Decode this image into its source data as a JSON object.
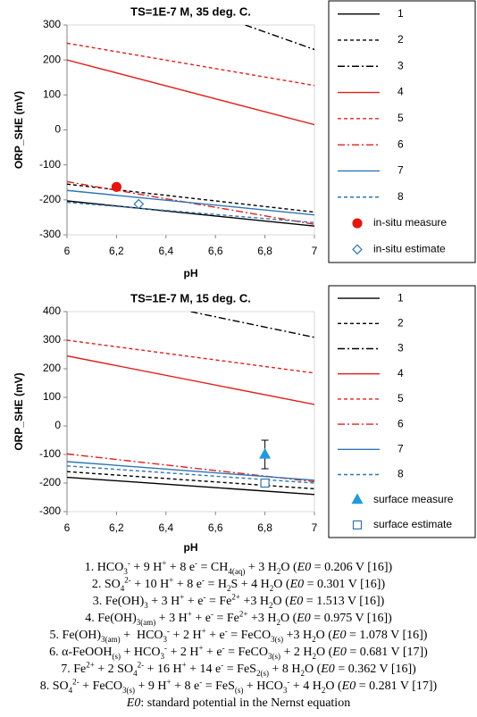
{
  "chart_data": [
    {
      "type": "line",
      "title": "TS=1E-7 M, 35 deg. C.",
      "xlabel": "pH",
      "ylabel": "ORP_SHE (mV)",
      "xlim": [
        6,
        7
      ],
      "xticks": [
        6,
        {
          "value": 6.2,
          "label": "6,2"
        },
        {
          "value": 6.4,
          "label": "6,4"
        },
        {
          "value": 6.6,
          "label": "6,6"
        },
        {
          "value": 6.8,
          "label": "6,8"
        },
        7
      ],
      "ylim": [
        -300,
        300
      ],
      "yticks": [
        -300,
        -200,
        -100,
        0,
        100,
        200,
        300
      ],
      "grid": false,
      "legend": "right",
      "series": [
        {
          "name": "1",
          "color": "#000000",
          "linestyle": "solid",
          "x": [
            6,
            7
          ],
          "values": [
            -203,
            -275
          ]
        },
        {
          "name": "2",
          "color": "#000000",
          "linestyle": "dashed",
          "x": [
            6,
            7
          ],
          "values": [
            -155,
            -235
          ]
        },
        {
          "name": "3",
          "color": "#000000",
          "linestyle": "dashdot",
          "x": [
            6.72,
            7
          ],
          "values": [
            300,
            230
          ]
        },
        {
          "name": "4",
          "color": "#e0201b",
          "linestyle": "solid",
          "x": [
            6,
            7
          ],
          "values": [
            200,
            15
          ]
        },
        {
          "name": "5",
          "color": "#e0201b",
          "linestyle": "dashed",
          "x": [
            6,
            7
          ],
          "values": [
            248,
            127
          ]
        },
        {
          "name": "6",
          "color": "#e0201b",
          "linestyle": "dashdot",
          "x": [
            6,
            7
          ],
          "values": [
            -148,
            -270
          ]
        },
        {
          "name": "7",
          "color": "#2e75b6",
          "linestyle": "solid",
          "x": [
            6,
            7
          ],
          "values": [
            -173,
            -243
          ]
        },
        {
          "name": "8",
          "color": "#2e75b6",
          "linestyle": "dashed",
          "x": [
            6,
            7
          ],
          "values": [
            -207,
            -265
          ]
        },
        {
          "name": "in-situ measure",
          "type": "scatter",
          "marker": "circle",
          "filled": true,
          "color": "#e8140e",
          "x": [
            6.2
          ],
          "values": [
            -163
          ]
        },
        {
          "name": "in-situ estimate",
          "type": "scatter",
          "marker": "diamond",
          "filled": false,
          "color": "#2e75b6",
          "x": [
            6.29
          ],
          "values": [
            -212
          ]
        }
      ]
    },
    {
      "type": "line",
      "title": "TS=1E-7 M, 15 deg. C.",
      "xlabel": "pH",
      "ylabel": "ORP_SHE (mV)",
      "xlim": [
        6,
        7
      ],
      "xticks": [
        6,
        {
          "value": 6.2,
          "label": "6,2"
        },
        {
          "value": 6.4,
          "label": "6,4"
        },
        {
          "value": 6.6,
          "label": "6,6"
        },
        {
          "value": 6.8,
          "label": "6,8"
        },
        7
      ],
      "ylim": [
        -300,
        400
      ],
      "yticks": [
        -300,
        -200,
        -100,
        0,
        100,
        200,
        300,
        400
      ],
      "grid": false,
      "legend": "right",
      "series": [
        {
          "name": "1",
          "color": "#000000",
          "linestyle": "solid",
          "x": [
            6,
            7
          ],
          "values": [
            -180,
            -240
          ]
        },
        {
          "name": "2",
          "color": "#000000",
          "linestyle": "dashed",
          "x": [
            6,
            7
          ],
          "values": [
            -160,
            -220
          ]
        },
        {
          "name": "3",
          "color": "#000000",
          "linestyle": "dashdot",
          "x": [
            6.5,
            7
          ],
          "values": [
            400,
            310
          ]
        },
        {
          "name": "4",
          "color": "#e0201b",
          "linestyle": "solid",
          "x": [
            6,
            7
          ],
          "values": [
            245,
            75
          ]
        },
        {
          "name": "5",
          "color": "#e0201b",
          "linestyle": "dashed",
          "x": [
            6,
            7
          ],
          "values": [
            300,
            185
          ]
        },
        {
          "name": "6",
          "color": "#e0201b",
          "linestyle": "dashdot",
          "x": [
            6,
            7
          ],
          "values": [
            -98,
            -195
          ]
        },
        {
          "name": "7",
          "color": "#2e75b6",
          "linestyle": "solid",
          "x": [
            6,
            7
          ],
          "values": [
            -125,
            -190
          ]
        },
        {
          "name": "8",
          "color": "#2e75b6",
          "linestyle": "dashed",
          "x": [
            6,
            7
          ],
          "values": [
            -140,
            -200
          ]
        },
        {
          "name": "surface measure",
          "type": "scatter",
          "marker": "triangle",
          "filled": true,
          "color": "#1e9be0",
          "x": [
            6.8
          ],
          "values": [
            -100
          ],
          "errors": [
            50
          ]
        },
        {
          "name": "surface estimate",
          "type": "scatter",
          "marker": "square",
          "filled": false,
          "color": "#2e75b6",
          "x": [
            6.8
          ],
          "values": [
            -200
          ]
        }
      ]
    }
  ],
  "equations": [
    [
      "1. HCO",
      {
        "sub": "3"
      },
      {
        "sup": "-"
      },
      " + 9 H",
      {
        "sup": "+"
      },
      " + 8 e",
      {
        "sup": "-"
      },
      " = CH",
      {
        "sub": "4(aq)"
      },
      " + 3 H",
      {
        "sub": "2"
      },
      "O (",
      {
        "i": "E0"
      },
      " = 0.206 V [16])"
    ],
    [
      "2. SO",
      {
        "sub": "4"
      },
      {
        "sup": "2-"
      },
      " + 10 H",
      {
        "sup": "+"
      },
      " + 8 e",
      {
        "sup": "-"
      },
      " = H",
      {
        "sub": "2"
      },
      "S + 4 H",
      {
        "sub": "2"
      },
      "O (",
      {
        "i": "E0"
      },
      " = 0.301 V [16])"
    ],
    [
      "3. Fe(OH)",
      {
        "sub": "3"
      },
      " + 3 H",
      {
        "sup": "+"
      },
      " + e",
      {
        "sup": "-"
      },
      " = Fe",
      {
        "sup": "2+"
      },
      " +3 H",
      {
        "sub": "2"
      },
      "O (",
      {
        "i": "E0"
      },
      " = 1.513 V [16])"
    ],
    [
      "4. Fe(OH)",
      {
        "sub": "3(am)"
      },
      " + 3 H",
      {
        "sup": "+"
      },
      " + e",
      {
        "sup": "-"
      },
      " = Fe",
      {
        "sup": "2+"
      },
      " +3 H",
      {
        "sub": "2"
      },
      "O (",
      {
        "i": "E0"
      },
      " = 0.975 V [16])"
    ],
    [
      "5. Fe(OH)",
      {
        "sub": "3(am)"
      },
      " +  HCO",
      {
        "sub": "3"
      },
      {
        "sup": "-"
      },
      " + 2 H",
      {
        "sup": "+"
      },
      " + e",
      {
        "sup": "-"
      },
      " = FeCO",
      {
        "sub": "3(s)"
      },
      " +3 H",
      {
        "sub": "2"
      },
      "O (",
      {
        "i": "E0"
      },
      " = 1.078 V [16])"
    ],
    [
      "6. α-FeOOH",
      {
        "sub": "(s)"
      },
      " + HCO",
      {
        "sub": "3"
      },
      {
        "sup": "-"
      },
      " + 2 H",
      {
        "sup": "+"
      },
      " + e",
      {
        "sup": "-"
      },
      " = FeCO",
      {
        "sub": "3(s)"
      },
      " + 2 H",
      {
        "sub": "2"
      },
      "O (",
      {
        "i": "E0"
      },
      " = 0.681 V [17])"
    ],
    [
      "7. Fe",
      {
        "sup": "2+"
      },
      " + 2 SO",
      {
        "sub": "4"
      },
      {
        "sup": "2-"
      },
      " + 16 H",
      {
        "sup": "+"
      },
      " + 14 e",
      {
        "sup": "-"
      },
      " = FeS",
      {
        "sub": "2(s)"
      },
      " + 8 H",
      {
        "sub": "2"
      },
      "O (",
      {
        "i": "E0"
      },
      " = 0.362 V [16])"
    ],
    [
      "8. SO",
      {
        "sub": "4"
      },
      {
        "sup": "2-"
      },
      " + FeCO",
      {
        "sub": "3(s)"
      },
      " + 9 H",
      {
        "sup": "+"
      },
      " + 8 e",
      {
        "sup": "-"
      },
      " = FeS",
      {
        "sub": "(s)"
      },
      " + HCO",
      {
        "sub": "3"
      },
      {
        "sup": "-"
      },
      " + 4 H",
      {
        "sub": "2"
      },
      "O (",
      {
        "i": "E0"
      },
      " = 0.281 V [17])"
    ],
    [
      {
        "i": "E0"
      },
      ": standard potential in the Nernst equation"
    ]
  ]
}
